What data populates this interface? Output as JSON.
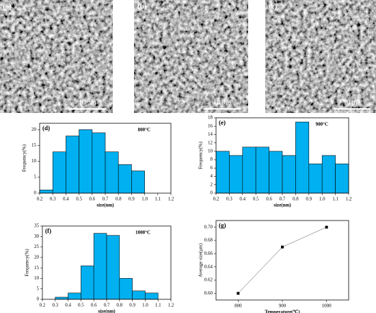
{
  "images": [
    {
      "label": "(a)",
      "scale": "10 μm"
    },
    {
      "label": "(b)",
      "scale": "10 μm"
    },
    {
      "label": "(c)",
      "scale": "10 μm"
    }
  ],
  "chart_data": [
    {
      "type": "histogram",
      "panel": "(d)",
      "annotation": "800°C",
      "xlabel": "size(nm)",
      "ylabel": "Frequency(%)",
      "bins": [
        0.2,
        0.3,
        0.4,
        0.5,
        0.6,
        0.7,
        0.8,
        0.9,
        1.0
      ],
      "values": [
        1,
        13,
        18,
        20,
        19,
        13,
        9,
        7
      ],
      "color": "#00b0f0",
      "xlim": [
        0.2,
        1.2
      ],
      "xticks": [
        0.2,
        0.3,
        0.4,
        0.5,
        0.6,
        0.7,
        0.8,
        0.9,
        {
          "value": 1.0,
          "label": "1.0"
        },
        1.1,
        1.2
      ],
      "ylim": [
        0,
        22
      ],
      "yticks": [
        0,
        5,
        10,
        15,
        20
      ]
    },
    {
      "type": "histogram",
      "panel": "(e)",
      "annotation": "900°C",
      "xlabel": "size(nm)",
      "ylabel": "Frequency(%)",
      "bins": [
        0.2,
        0.3,
        0.4,
        0.5,
        0.6,
        0.7,
        0.8,
        0.9,
        1.0,
        1.1,
        1.2
      ],
      "values": [
        10,
        9,
        11,
        11,
        10,
        9,
        17,
        7,
        9,
        7
      ],
      "color": "#00b0f0",
      "xlim": [
        0.2,
        1.2
      ],
      "xticks": [
        0.2,
        0.3,
        0.4,
        0.5,
        0.6,
        0.7,
        0.8,
        0.9,
        {
          "value": 1.0,
          "label": "1.0"
        },
        1.1,
        1.2
      ],
      "ylim": [
        0,
        18
      ],
      "yticks": [
        0,
        2,
        4,
        6,
        8,
        10,
        12,
        14,
        16,
        18
      ]
    },
    {
      "type": "histogram",
      "panel": "(f)",
      "annotation": "1000°C",
      "xlabel": "size(nm)",
      "ylabel": "Frequency(%)",
      "bins": [
        0.3,
        0.4,
        0.5,
        0.6,
        0.7,
        0.8,
        0.9,
        1.0,
        1.1
      ],
      "values": [
        1,
        3,
        16,
        31.5,
        30.5,
        10,
        4,
        3
      ],
      "color": "#00b0f0",
      "xlim": [
        0.2,
        1.2
      ],
      "xticks": [
        0.2,
        0.3,
        0.4,
        0.5,
        0.6,
        0.7,
        0.8,
        0.9,
        {
          "value": 1.0,
          "label": "1.0"
        },
        1.1,
        1.2
      ],
      "ylim": [
        0,
        35
      ],
      "yticks": [
        0,
        5,
        10,
        15,
        20,
        25,
        30,
        35
      ]
    },
    {
      "type": "line",
      "panel": "(g)",
      "xlabel": "Temperature(℃)",
      "ylabel": "Average size(μm)",
      "x": [
        800,
        900,
        1000
      ],
      "values": [
        0.6,
        0.67,
        0.7
      ],
      "color": "#000000",
      "xlim": [
        750,
        1050
      ],
      "xticks": [
        800,
        900,
        1000
      ],
      "ylim": [
        0.59,
        0.71
      ],
      "yticks": [
        {
          "value": 0.6,
          "label": "0.60"
        },
        {
          "value": 0.62,
          "label": "0.62"
        },
        {
          "value": 0.64,
          "label": "0.64"
        },
        {
          "value": 0.66,
          "label": "0.66"
        },
        {
          "value": 0.68,
          "label": "0.68"
        },
        {
          "value": 0.7,
          "label": "0.70"
        }
      ]
    }
  ]
}
